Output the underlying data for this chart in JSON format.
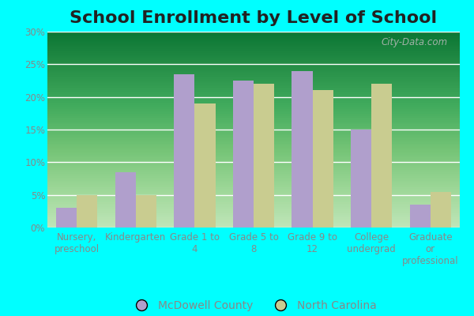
{
  "title": "School Enrollment by Level of School",
  "categories": [
    "Nursery,\npreschool",
    "Kindergarten",
    "Grade 1 to\n4",
    "Grade 5 to\n8",
    "Grade 9 to\n12",
    "College\nundergrad",
    "Graduate\nor\nprofessional"
  ],
  "mcdowell_values": [
    3.0,
    8.5,
    23.5,
    22.5,
    24.0,
    15.0,
    3.5
  ],
  "nc_values": [
    5.0,
    5.0,
    19.0,
    22.0,
    21.0,
    22.0,
    5.5
  ],
  "mcdowell_color": "#b09fcc",
  "nc_color": "#c9cc90",
  "ylim": [
    0,
    30
  ],
  "yticks": [
    0,
    5,
    10,
    15,
    20,
    25,
    30
  ],
  "ytick_labels": [
    "0%",
    "5%",
    "10%",
    "15%",
    "20%",
    "25%",
    "30%"
  ],
  "legend_labels": [
    "McDowell County",
    "North Carolina"
  ],
  "background_color": "#00ffff",
  "watermark": "City-Data.com",
  "bar_width": 0.35,
  "title_fontsize": 16,
  "tick_fontsize": 8.5,
  "legend_fontsize": 10,
  "label_color": "#888888",
  "title_color": "#222222"
}
